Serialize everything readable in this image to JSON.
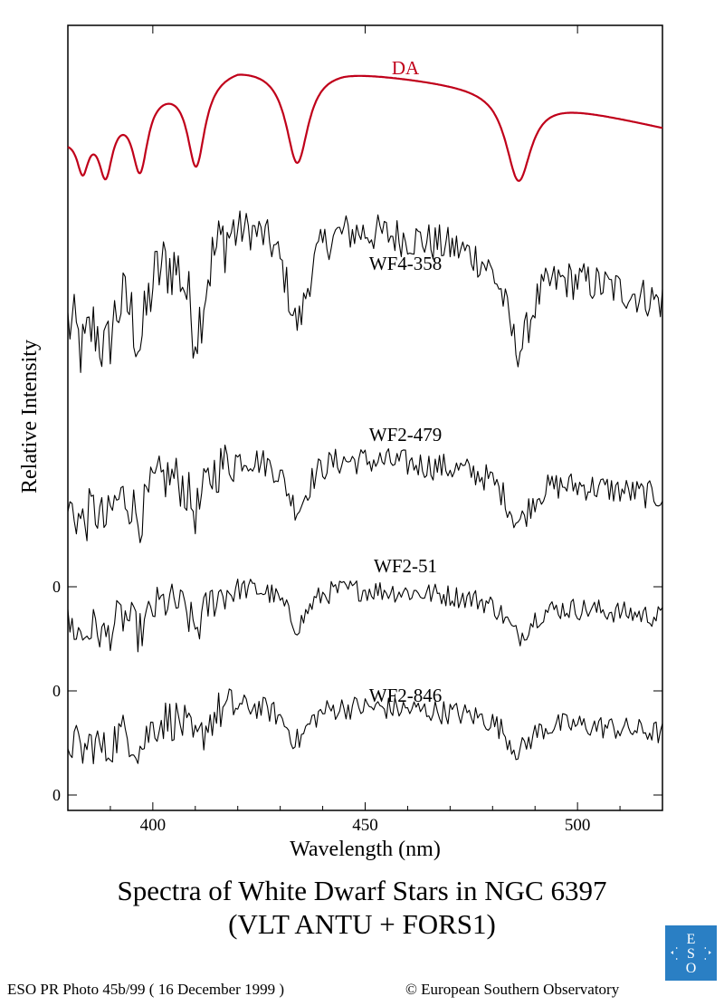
{
  "chart_data": {
    "type": "line",
    "title": "Spectra of  White Dwarf Stars in NGC 6397",
    "subtitle": "(VLT ANTU + FORS1)",
    "xlabel": "Wavelength (nm)",
    "ylabel": "Relative Intensity",
    "xlim": [
      380,
      520
    ],
    "xticks": [
      400,
      450,
      500
    ],
    "grid": false,
    "legend": "none (spectra labeled directly)",
    "zero_marks": [
      {
        "label": "0",
        "spectrum": "WF2-51"
      },
      {
        "label": "0",
        "spectrum": "WF2-846"
      },
      {
        "label": "0",
        "spectrum": "WF2-846 base"
      }
    ],
    "absorption_lines_nm": [
      383.5,
      388.9,
      397.0,
      410.2,
      434.0,
      486.1
    ],
    "series": [
      {
        "name": "DA",
        "color": "#c0001a",
        "kind": "model",
        "description_values": {
          "continuum_rel": [
            0.55,
            0.9,
            1.0,
            0.85,
            0.55
          ],
          "continuum_x": [
            380,
            420,
            450,
            480,
            520
          ]
        }
      },
      {
        "name": "WF4-358",
        "color": "#000000",
        "kind": "observed",
        "noise": 0.55
      },
      {
        "name": "WF2-479",
        "color": "#000000",
        "kind": "observed",
        "noise": 0.75
      },
      {
        "name": "WF2-51",
        "color": "#000000",
        "kind": "observed",
        "noise": 0.8
      },
      {
        "name": "WF2-846",
        "color": "#000000",
        "kind": "observed",
        "noise": 0.9
      }
    ]
  },
  "footer": {
    "credit_left": "ESO PR Photo 45b/99 ( 16 December 1999 )",
    "credit_right": "© European Southern Observatory",
    "logo_text": "ESO"
  },
  "colors": {
    "model_line": "#c0001a",
    "observed_line": "#000000",
    "logo_bg": "#2a7fc4"
  }
}
